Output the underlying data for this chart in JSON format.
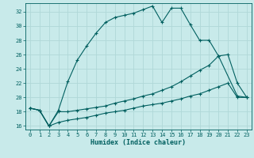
{
  "xlabel": "Humidex (Indice chaleur)",
  "bg_color": "#c8eaea",
  "grid_color": "#b0d8d8",
  "line_color": "#005f5f",
  "xlim": [
    -0.5,
    23.5
  ],
  "ylim": [
    15.5,
    33.2
  ],
  "yticks": [
    16,
    18,
    20,
    22,
    24,
    26,
    28,
    30,
    32
  ],
  "xticks": [
    0,
    1,
    2,
    3,
    4,
    5,
    6,
    7,
    8,
    9,
    10,
    11,
    12,
    13,
    14,
    15,
    16,
    17,
    18,
    19,
    20,
    21,
    22,
    23
  ],
  "line1_x": [
    0,
    1,
    2,
    3,
    4,
    5,
    6,
    7,
    8,
    9,
    10,
    11,
    12,
    13,
    14,
    15,
    16,
    17,
    18,
    19,
    20,
    22,
    23
  ],
  "line1_y": [
    18.5,
    18.2,
    16.0,
    18.2,
    22.2,
    25.2,
    27.2,
    29.0,
    30.5,
    31.2,
    31.5,
    31.8,
    32.3,
    32.8,
    30.5,
    32.5,
    32.5,
    30.2,
    28.0,
    28.0,
    25.8,
    20.2,
    20.0
  ],
  "line2_x": [
    0,
    1,
    2,
    3,
    4,
    5,
    6,
    7,
    8,
    9,
    10,
    11,
    12,
    13,
    14,
    15,
    16,
    17,
    18,
    19,
    20,
    21,
    22,
    23
  ],
  "line2_y": [
    18.5,
    18.2,
    16.0,
    18.0,
    18.0,
    18.2,
    18.4,
    18.6,
    18.8,
    19.2,
    19.5,
    19.8,
    20.2,
    20.5,
    21.0,
    21.5,
    22.2,
    23.0,
    23.8,
    24.5,
    25.8,
    26.0,
    22.0,
    20.0
  ],
  "line3_x": [
    0,
    1,
    2,
    3,
    4,
    5,
    6,
    7,
    8,
    9,
    10,
    11,
    12,
    13,
    14,
    15,
    16,
    17,
    18,
    19,
    20,
    21,
    22,
    23
  ],
  "line3_y": [
    18.5,
    18.2,
    16.0,
    16.5,
    16.8,
    17.0,
    17.2,
    17.5,
    17.8,
    18.0,
    18.2,
    18.5,
    18.8,
    19.0,
    19.2,
    19.5,
    19.8,
    20.2,
    20.5,
    21.0,
    21.5,
    22.0,
    20.0,
    20.0
  ]
}
